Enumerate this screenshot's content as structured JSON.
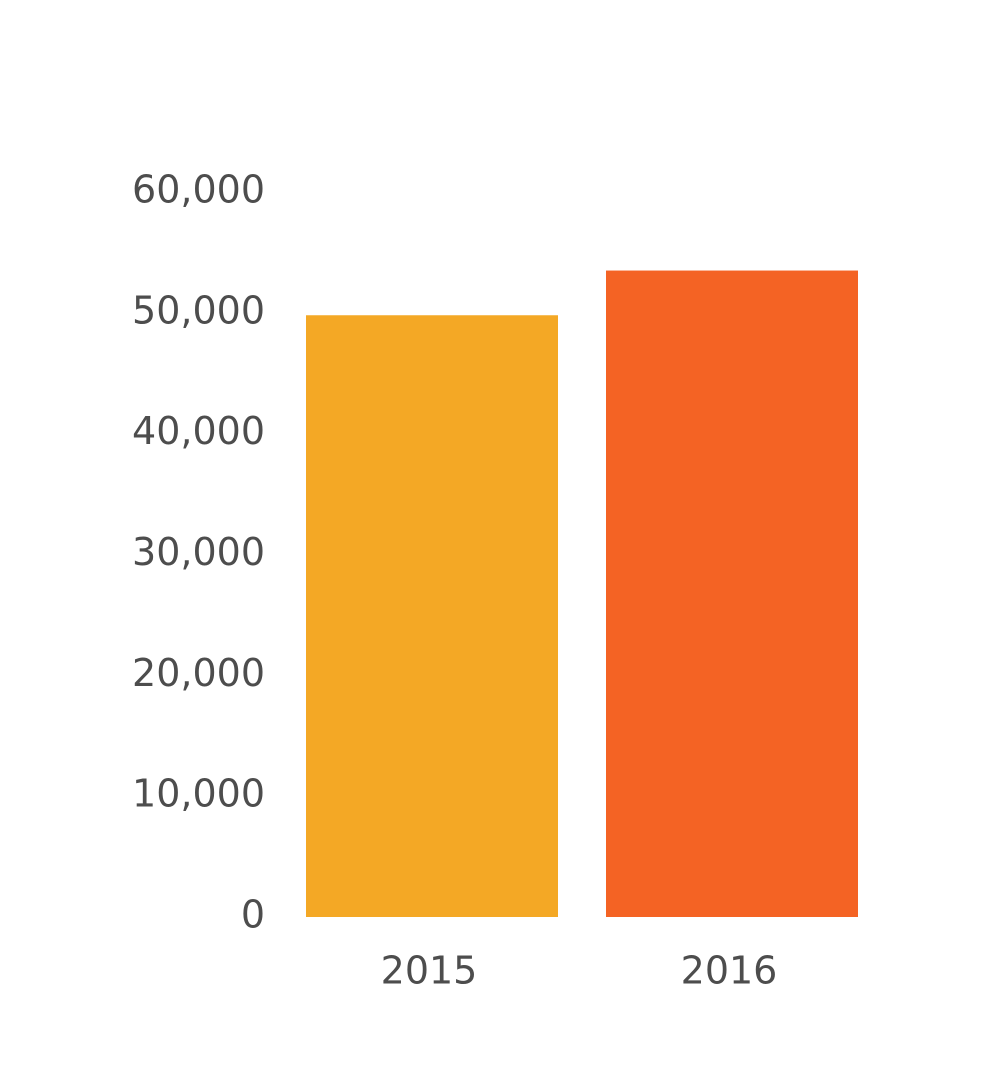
{
  "chart_data": {
    "type": "bar",
    "categories": [
      "2015",
      "2016"
    ],
    "values": [
      49800,
      53500
    ],
    "colors": [
      "#f4a825",
      "#f46324"
    ],
    "ylim": [
      0,
      60000
    ],
    "yticks": [
      0,
      {
        "value": 10000,
        "label": "10,000"
      },
      {
        "value": 20000,
        "label": "20,000"
      },
      {
        "value": 30000,
        "label": "30,000"
      },
      {
        "value": 40000,
        "label": "40,000"
      },
      {
        "value": 50000,
        "label": "50,000"
      },
      {
        "value": 60000,
        "label": "60,000"
      }
    ],
    "grid": false
  }
}
